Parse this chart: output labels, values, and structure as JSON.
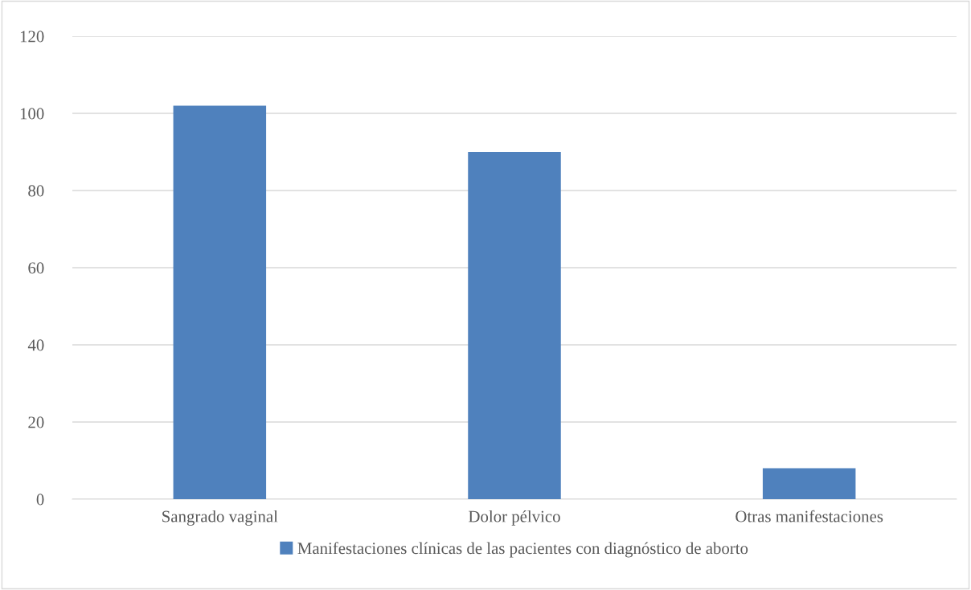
{
  "chart_data": {
    "type": "bar",
    "categories": [
      "Sangrado vaginal",
      "Dolor pélvico",
      "Otras manifestaciones"
    ],
    "series": [
      {
        "name": "Manifestaciones clínicas de las pacientes con diagnóstico de aborto",
        "color": "#4f81bd",
        "values": [
          102,
          90,
          8
        ]
      }
    ],
    "ylim": [
      0,
      120
    ],
    "yticks": [
      0,
      20,
      40,
      60,
      80,
      100,
      120
    ],
    "grid": "y",
    "legend": "bottom"
  }
}
